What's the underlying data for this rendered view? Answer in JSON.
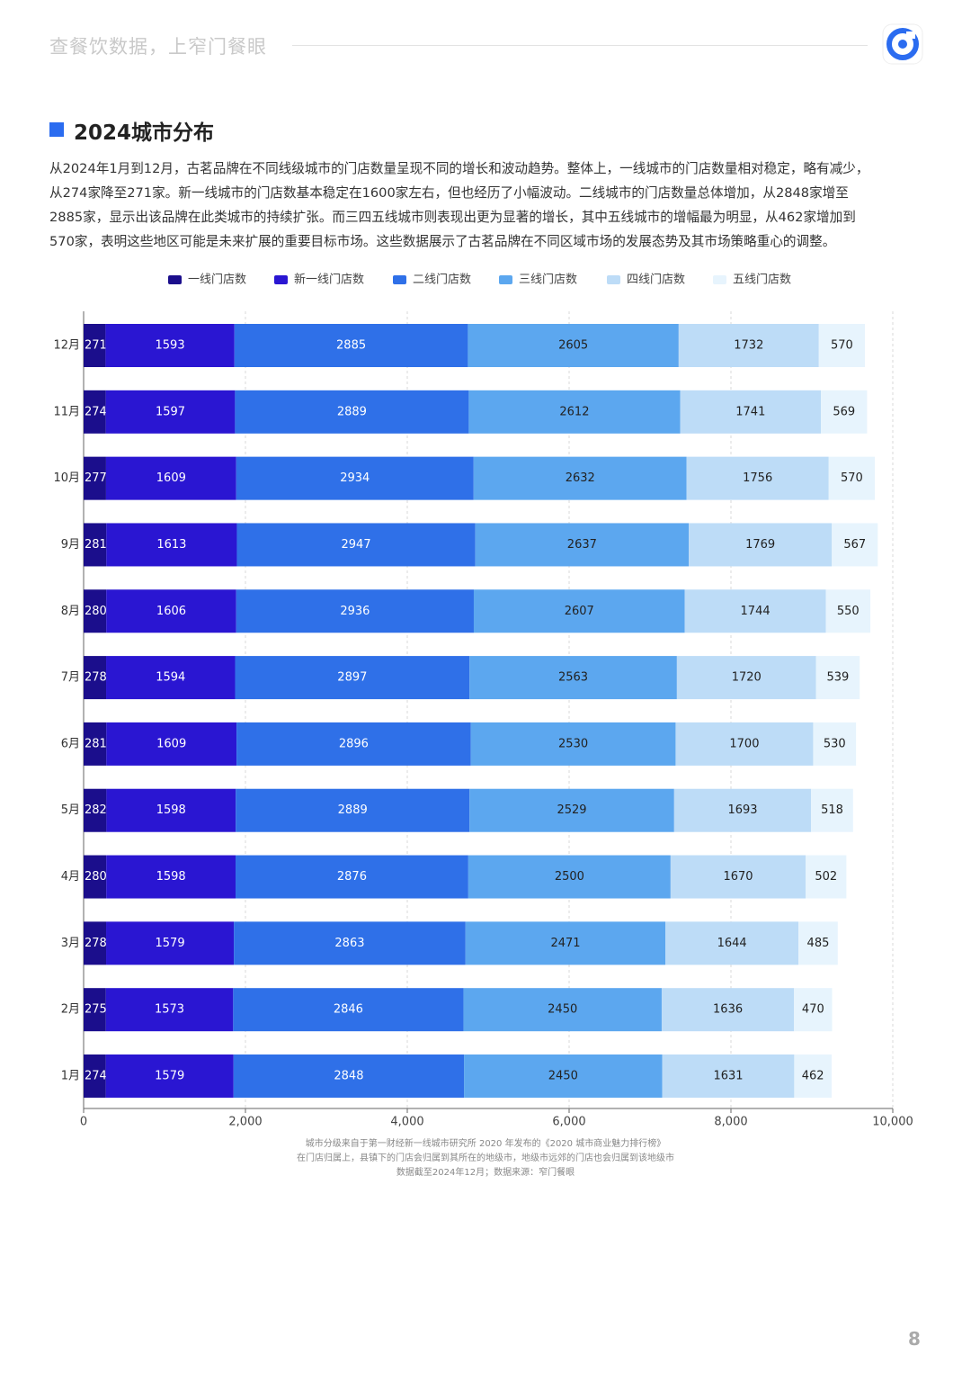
{
  "header": {
    "slogan": "查餐饮数据，上窄门餐眼"
  },
  "section": {
    "title": "2024城市分布",
    "paragraph": [
      "从2024年1月到12月，古茗品牌在不同线级城市的门店数量呈现不同的增长和波动趋势。整体上，一线城市的门店数量相对稳定，略有减少，",
      "从274家降至271家。新一线城市的门店数基本稳定在1600家左右，但也经历了小幅波动。二线城市的门店数量总体增加，从2848家增至",
      "2885家，显示出该品牌在此类城市的持续扩张。而三四五线城市则表现出更为显著的增长，其中五线城市的增幅最为明显，从462家增加到",
      "570家，表明这些地区可能是未来扩展的重要目标市场。这些数据展示了古茗品牌在不同区域市场的发展态势及其市场策略重心的调整。"
    ]
  },
  "chart_data": {
    "type": "stacked-barh",
    "categories": [
      "12月",
      "11月",
      "10月",
      "9月",
      "8月",
      "7月",
      "6月",
      "5月",
      "4月",
      "3月",
      "2月",
      "1月"
    ],
    "series": [
      {
        "name": "一线门店数",
        "color": "#1b0e8c",
        "values": [
          271,
          274,
          277,
          281,
          280,
          278,
          281,
          282,
          280,
          278,
          275,
          274
        ]
      },
      {
        "name": "新一线门店数",
        "color": "#2a16d2",
        "values": [
          1593,
          1597,
          1609,
          1613,
          1606,
          1594,
          1609,
          1598,
          1598,
          1579,
          1573,
          1579
        ]
      },
      {
        "name": "二线门店数",
        "color": "#2f70e8",
        "values": [
          2885,
          2889,
          2934,
          2947,
          2936,
          2897,
          2896,
          2889,
          2876,
          2863,
          2846,
          2848
        ]
      },
      {
        "name": "三线门店数",
        "color": "#5ca7ef",
        "values": [
          2605,
          2612,
          2632,
          2637,
          2607,
          2563,
          2530,
          2529,
          2500,
          2471,
          2450,
          2450
        ]
      },
      {
        "name": "四线门店数",
        "color": "#bddcf7",
        "values": [
          1732,
          1741,
          1756,
          1769,
          1744,
          1720,
          1700,
          1693,
          1670,
          1644,
          1636,
          1631
        ]
      },
      {
        "name": "五线门店数",
        "color": "#e7f4fd",
        "values": [
          570,
          569,
          570,
          567,
          550,
          539,
          530,
          518,
          502,
          485,
          470,
          462
        ]
      }
    ],
    "xlim": [
      0,
      10000
    ],
    "xticks": [
      0,
      {
        "value": 2000,
        "label": "2,000"
      },
      {
        "value": 4000,
        "label": "4,000"
      },
      {
        "value": 6000,
        "label": "6,000"
      },
      {
        "value": 8000,
        "label": "8,000"
      },
      {
        "value": 10000,
        "label": "10,000"
      }
    ],
    "grid": true
  },
  "footnotes": [
    "城市分级来自于第一财经新一线城市研究所 2020 年发布的《2020 城市商业魅力排行榜》",
    "在门店归属上，县镇下的门店会归属到其所在的地级市，地级市远郊的门店也会归属到该地级市",
    "数据截至2024年12月；数据来源：窄门餐眼"
  ],
  "page_number": "8"
}
